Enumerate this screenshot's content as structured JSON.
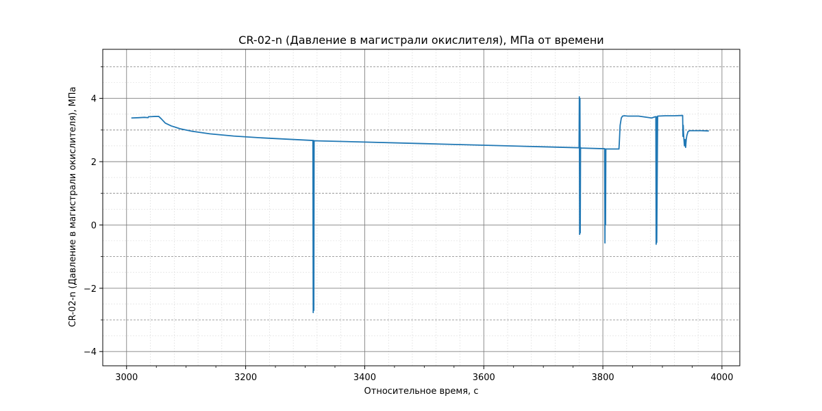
{
  "chart_data": {
    "type": "line",
    "title": "CR-02-n (Давление в магистрали окислителя), МПа от времени",
    "xlabel": "Относительное время, с",
    "ylabel": "CR-02-n (Давление в магистрали окислителя), МПа",
    "xlim": [
      2960,
      4030
    ],
    "ylim": [
      -4.45,
      5.55
    ],
    "xticks": [
      3000,
      3200,
      3400,
      3600,
      3800,
      4000
    ],
    "xtick_labels": [
      "3000",
      "3200",
      "3400",
      "3600",
      "3800",
      "4000"
    ],
    "yticks": [
      -4,
      -2,
      0,
      2,
      4
    ],
    "ytick_labels": [
      "−4",
      "−2",
      "0",
      "2",
      "4"
    ],
    "grid": "major and minor",
    "series": [
      {
        "color": "#1f77b4",
        "x": [
          3008,
          3020,
          3030,
          3036,
          3037,
          3040,
          3048,
          3054,
          3058,
          3065,
          3075,
          3090,
          3110,
          3140,
          3180,
          3220,
          3270,
          3313,
          3313.5,
          3314,
          3314.5,
          3315,
          3400,
          3500,
          3600,
          3700,
          3760,
          3760.5,
          3761,
          3761.5,
          3762,
          3762.5,
          3763,
          3800,
          3803,
          3803.5,
          3804,
          3804.5,
          3805,
          3827,
          3827.5,
          3829,
          3831,
          3833,
          3836,
          3842,
          3860,
          3875,
          3882,
          3888,
          3889,
          3889.5,
          3890,
          3890.5,
          3892,
          3905,
          3920,
          3934,
          3934.5,
          3935,
          3935.5,
          3936,
          3937,
          3938,
          3939,
          3940,
          3941,
          3943,
          3946,
          3950,
          3955,
          3965,
          3978
        ],
        "y": [
          3.38,
          3.39,
          3.4,
          3.39,
          3.42,
          3.42,
          3.43,
          3.43,
          3.36,
          3.22,
          3.13,
          3.04,
          2.96,
          2.88,
          2.81,
          2.76,
          2.71,
          2.67,
          -2.77,
          2.67,
          -2.7,
          2.66,
          2.62,
          2.57,
          2.52,
          2.47,
          2.44,
          4.05,
          -0.3,
          4.0,
          -0.25,
          2.45,
          2.43,
          2.41,
          2.41,
          -0.57,
          2.4,
          0.0,
          2.4,
          2.4,
          2.55,
          3.15,
          3.38,
          3.44,
          3.45,
          3.44,
          3.44,
          3.4,
          3.38,
          3.42,
          3.42,
          -0.61,
          3.42,
          -0.55,
          3.44,
          3.45,
          3.45,
          3.46,
          2.8,
          3.15,
          2.9,
          2.75,
          2.5,
          2.7,
          2.45,
          2.7,
          2.82,
          2.95,
          2.98,
          2.98,
          2.98,
          2.98,
          2.97
        ]
      }
    ]
  }
}
